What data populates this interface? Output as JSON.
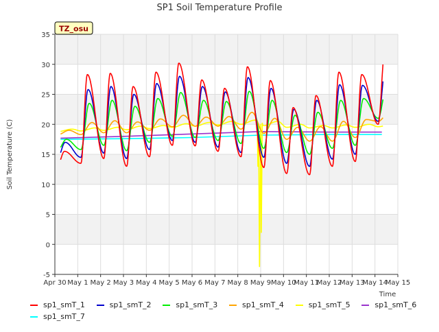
{
  "chart_data": {
    "type": "line",
    "title": "SP1 Soil Temperature Profile",
    "xlabel": "Time",
    "ylabel": "Soil Temperature (C)",
    "ylim": [
      -5,
      35
    ],
    "yticks": [
      -5,
      0,
      5,
      10,
      15,
      20,
      25,
      30,
      35
    ],
    "xlim": [
      0,
      15
    ],
    "xticks": [
      0,
      1,
      2,
      3,
      4,
      5,
      6,
      7,
      8,
      9,
      10,
      11,
      12,
      13,
      14,
      15
    ],
    "xtick_labels": [
      "Apr 30",
      "May 1",
      "May 2",
      "May 3",
      "May 4",
      "May 5",
      "May 6",
      "May 7",
      "May 8",
      "May 9",
      "May 10",
      "May 11",
      "May 12",
      "May 13",
      "May 14",
      "May 15"
    ],
    "site_label": "TZ_osu",
    "grid": true,
    "background_bands": "alternating light gray",
    "days": [
      0,
      1,
      2,
      3,
      4,
      5,
      6,
      7,
      8,
      9,
      10,
      11,
      12,
      13,
      14
    ],
    "series": [
      {
        "name": "sp1_smT_1",
        "color": "#ff0000",
        "kind": "diurnal",
        "phase": 0.42,
        "daily_max": [
          15.5,
          28.3,
          28.5,
          26.3,
          28.7,
          30.2,
          27.4,
          26.0,
          29.6,
          27.3,
          22.8,
          24.8,
          28.7,
          28.3,
          31.7
        ],
        "daily_min": [
          13.4,
          13.5,
          14.3,
          13.0,
          14.6,
          16.5,
          16.4,
          15.5,
          14.6,
          12.8,
          11.8,
          11.6,
          13.0,
          13.8,
          20.0
        ]
      },
      {
        "name": "sp1_smT_2",
        "color": "#0000cc",
        "kind": "diurnal",
        "phase": 0.45,
        "daily_max": [
          17.0,
          25.8,
          26.3,
          25.0,
          26.8,
          28.0,
          26.3,
          25.4,
          27.8,
          26.0,
          22.5,
          24.0,
          26.6,
          26.5,
          29.2
        ],
        "daily_min": [
          14.6,
          14.5,
          15.2,
          14.3,
          15.8,
          17.3,
          17.0,
          16.2,
          15.3,
          14.5,
          13.5,
          13.0,
          14.2,
          15.0,
          20.5
        ]
      },
      {
        "name": "sp1_smT_3",
        "color": "#00ee00",
        "kind": "diurnal",
        "phase": 0.5,
        "daily_max": [
          17.5,
          23.5,
          24.0,
          23.0,
          24.3,
          25.3,
          24.0,
          23.8,
          25.5,
          24.0,
          21.5,
          22.0,
          24.0,
          24.3,
          26.0
        ],
        "daily_min": [
          15.8,
          15.8,
          16.5,
          15.6,
          17.0,
          18.0,
          17.8,
          17.3,
          16.8,
          16.0,
          15.3,
          15.0,
          16.0,
          16.5,
          21.0
        ]
      },
      {
        "name": "sp1_smT_4",
        "color": "#ffa500",
        "kind": "diurnal",
        "phase": 0.62,
        "daily_max": [
          19.0,
          20.3,
          20.6,
          20.4,
          20.9,
          21.5,
          21.2,
          21.3,
          22.0,
          21.0,
          19.5,
          19.6,
          20.5,
          20.8,
          22.0
        ],
        "daily_min": [
          18.3,
          18.3,
          18.6,
          18.6,
          19.0,
          19.6,
          19.7,
          19.7,
          19.2,
          18.5,
          17.5,
          17.2,
          17.2,
          17.8,
          20.5
        ]
      },
      {
        "name": "sp1_smT_5",
        "color": "#ffff00",
        "kind": "diurnal",
        "phase": 0.75,
        "daily_max": [
          19.2,
          19.4,
          19.5,
          19.7,
          19.8,
          20.1,
          20.3,
          20.5,
          20.7,
          20.5,
          20.0,
          19.8,
          19.9,
          20.0,
          20.1
        ],
        "daily_min": [
          18.8,
          18.9,
          19.0,
          19.1,
          19.3,
          19.5,
          19.7,
          19.9,
          20.0,
          19.8,
          19.5,
          19.4,
          19.4,
          19.5,
          19.6
        ],
        "spikes": [
          {
            "x": 8.85,
            "y": 20.3
          },
          {
            "x": 8.88,
            "y": 13.0
          },
          {
            "x": 8.91,
            "y": 20.1
          },
          {
            "x": 8.95,
            "y": -3.7
          },
          {
            "x": 9.0,
            "y": 20.0
          },
          {
            "x": 9.03,
            "y": 2.0
          },
          {
            "x": 9.07,
            "y": 20.2
          }
        ]
      },
      {
        "name": "sp1_smT_6",
        "color": "#9932cc",
        "kind": "linear",
        "x": [
          0,
          3,
          6,
          9,
          12,
          14.3
        ],
        "y": [
          17.7,
          18.0,
          18.4,
          18.8,
          18.7,
          18.7
        ]
      },
      {
        "name": "sp1_smT_7",
        "color": "#00ffff",
        "kind": "linear",
        "x": [
          0,
          3,
          6,
          9,
          12,
          14.3
        ],
        "y": [
          17.5,
          17.6,
          17.8,
          18.2,
          18.3,
          18.3
        ]
      }
    ]
  }
}
